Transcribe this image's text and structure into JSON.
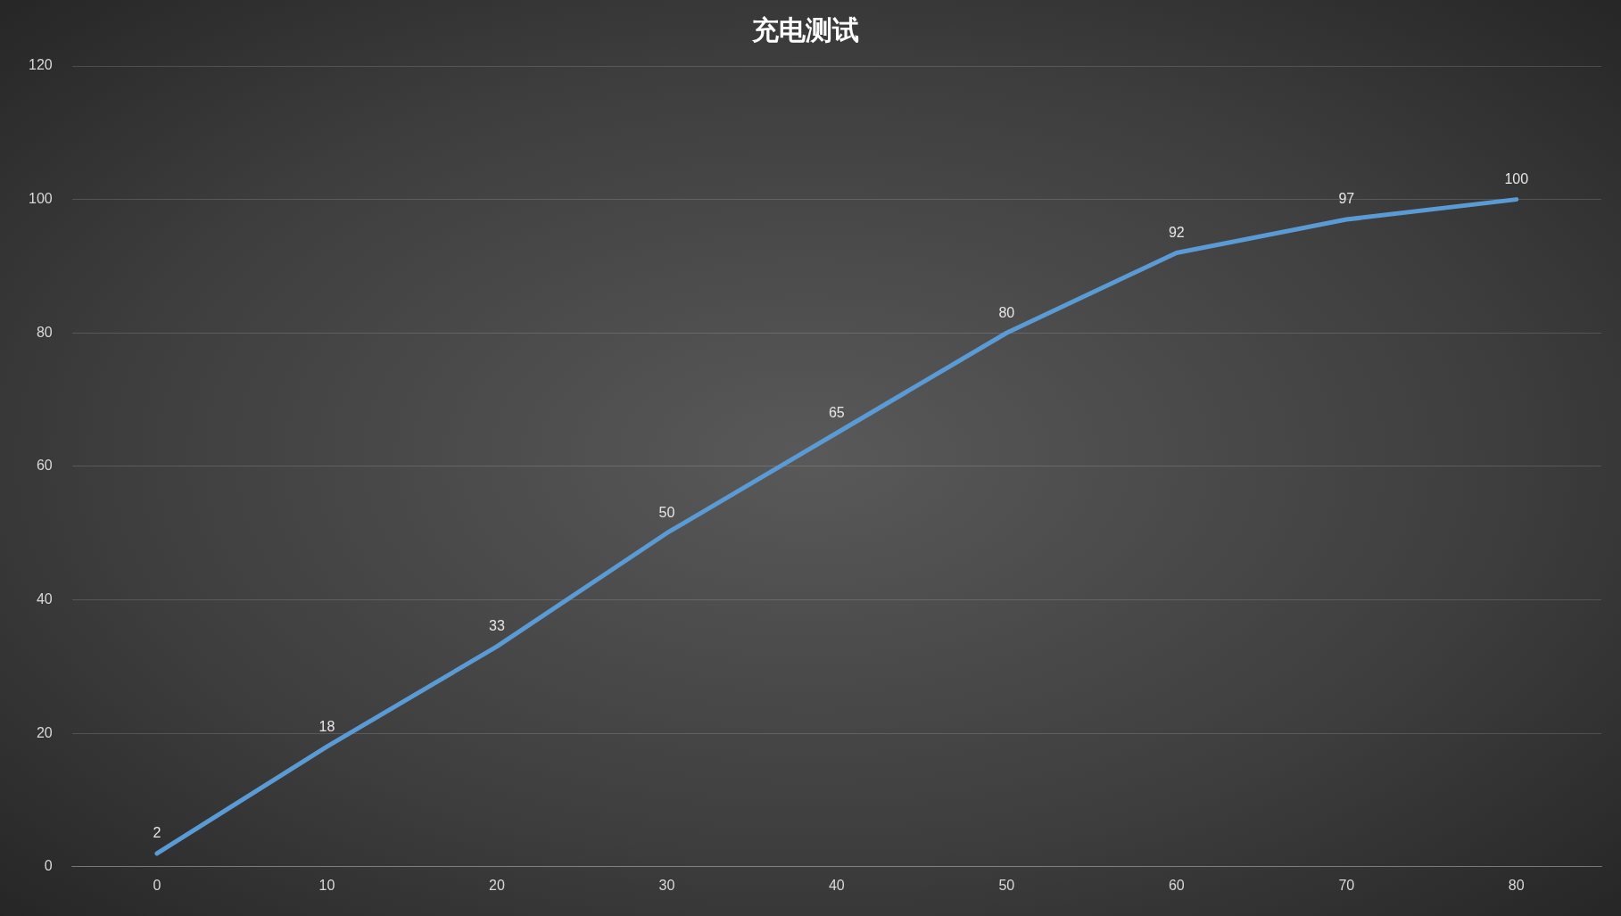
{
  "chart_data": {
    "type": "line",
    "title": "充电测试",
    "categories": [
      "0",
      "10",
      "20",
      "30",
      "40",
      "50",
      "60",
      "70",
      "80"
    ],
    "series": [
      {
        "color": "#5b9bd5",
        "values": [
          2,
          18,
          33,
          50,
          65,
          80,
          92,
          97,
          100
        ]
      }
    ],
    "ylim": [
      0,
      120
    ],
    "yticks": [
      0,
      20,
      40,
      60,
      80,
      100,
      120
    ],
    "grid": "y",
    "legend": false,
    "marker": "none",
    "line_style": "solid",
    "data_labels": true
  }
}
